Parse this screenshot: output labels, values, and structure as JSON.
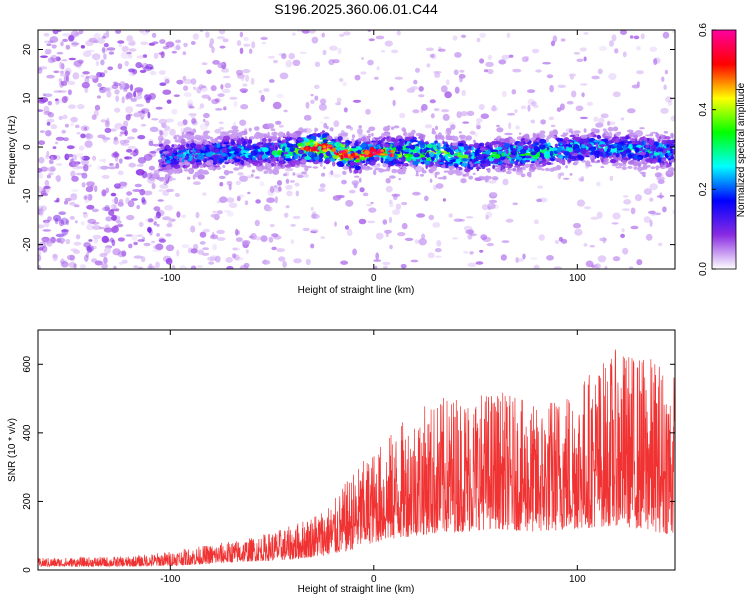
{
  "title": "S196.2025.360.06.01.C44",
  "chart_data": [
    {
      "type": "heatmap",
      "xlabel": "Height of straight line (km)",
      "ylabel": "Frequency (Hz)",
      "xlim": [
        -165,
        148
      ],
      "ylim": [
        -25,
        24
      ],
      "xticks": [
        -100,
        0,
        100
      ],
      "yticks": [
        -20,
        -10,
        0,
        10,
        20
      ],
      "xtick_labels": [
        "-100",
        "0",
        "100"
      ],
      "ytick_labels": [
        "-20",
        "-10",
        "0",
        "10",
        "20"
      ],
      "colorbar": {
        "label": "Normalized spectral amplitude",
        "range": [
          0.0,
          0.6
        ],
        "ticks": [
          0.0,
          0.2,
          0.4,
          0.6
        ],
        "tick_labels": [
          "0.0",
          "0.2",
          "0.4",
          "0.6"
        ],
        "colormap": [
          "#ffffff",
          "#8a2be2",
          "#0000ff",
          "#00ffff",
          "#00ff00",
          "#ffff00",
          "#ff0000",
          "#ff00a0"
        ]
      },
      "ridge": {
        "description_points_x": [
          -100,
          -75,
          -50,
          -25,
          -10,
          0,
          20,
          50,
          80,
          110,
          145
        ],
        "center_freq": [
          -2,
          -1,
          -1,
          0,
          -2,
          -1,
          -1,
          -2,
          -1,
          0,
          -1
        ],
        "peak_value": [
          0.25,
          0.3,
          0.3,
          0.6,
          0.5,
          0.35,
          0.45,
          0.35,
          0.35,
          0.3,
          0.3
        ]
      }
    },
    {
      "type": "line",
      "xlabel": "Height of straight line (km)",
      "ylabel": "SNR (10 * v/v)",
      "xlim": [
        -165,
        148
      ],
      "ylim": [
        0,
        700
      ],
      "xticks": [
        -100,
        0,
        100
      ],
      "yticks": [
        0,
        200,
        400,
        600
      ],
      "xtick_labels": [
        "-100",
        "0",
        "100"
      ],
      "ytick_labels": [
        "0",
        "200",
        "400",
        "600"
      ],
      "color": "#f03232",
      "envelope": {
        "x": [
          -165,
          -120,
          -100,
          -80,
          -60,
          -40,
          -20,
          -10,
          0,
          20,
          40,
          60,
          80,
          100,
          120,
          140,
          148
        ],
        "base": [
          10,
          10,
          12,
          18,
          25,
          30,
          45,
          60,
          80,
          100,
          110,
          120,
          110,
          120,
          130,
          110,
          100
        ],
        "peak": [
          35,
          40,
          55,
          75,
          95,
          130,
          200,
          290,
          350,
          470,
          520,
          530,
          480,
          560,
          650,
          620,
          580
        ]
      }
    }
  ]
}
